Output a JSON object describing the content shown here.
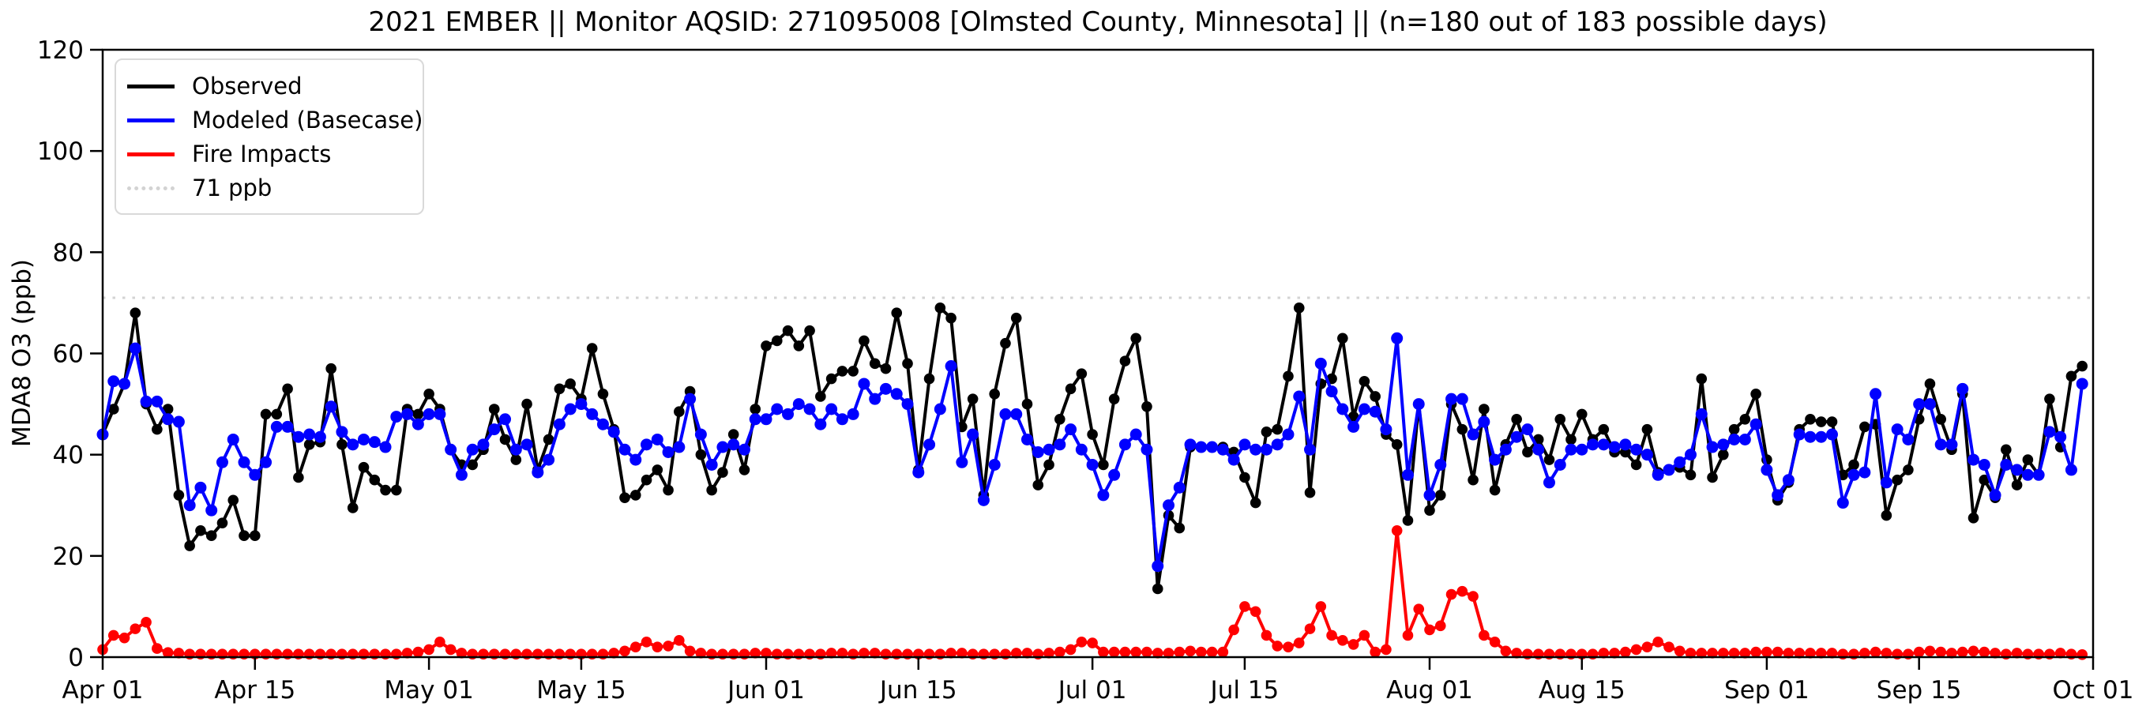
{
  "title": "2021 EMBER || Monitor AQSID: 271095008 [Olmsted County, Minnesota] || (n=180 out of 183 possible days)",
  "legend": {
    "items": [
      {
        "label": "Observed",
        "color": "#000000",
        "style": "solid"
      },
      {
        "label": "Modeled (Basecase)",
        "color": "#0000ff",
        "style": "solid"
      },
      {
        "label": "Fire Impacts",
        "color": "#ff0000",
        "style": "solid"
      },
      {
        "label": "71 ppb",
        "color": "#d3d3d3",
        "style": "dotted"
      }
    ]
  },
  "chart_data": {
    "type": "line",
    "title": "2021 EMBER || Monitor AQSID: 271095008 [Olmsted County, Minnesota] || (n=180 out of 183 possible days)",
    "xlabel": "",
    "ylabel": "MDA8 O3 (ppb)",
    "ylim": [
      0,
      120
    ],
    "yticks": [
      0,
      20,
      40,
      60,
      80,
      100,
      120
    ],
    "x_range_days": 183,
    "x_start": "Apr 01",
    "x_end": "Oct 01",
    "xtick_labels": [
      "Apr 01",
      "Apr 15",
      "May 01",
      "May 15",
      "Jun 01",
      "Jun 15",
      "Jul 01",
      "Jul 15",
      "Aug 01",
      "Aug 15",
      "Sep 01",
      "Sep 15",
      "Oct 01"
    ],
    "xtick_day_index": [
      0,
      14,
      30,
      44,
      61,
      75,
      91,
      105,
      122,
      136,
      153,
      167,
      183
    ],
    "grid": false,
    "legend_position": "upper left",
    "reference_line": {
      "value": 71,
      "label": "71 ppb",
      "color": "#d3d3d3",
      "style": "dotted"
    },
    "series": [
      {
        "name": "Observed",
        "color": "#000000",
        "marker": "circle",
        "values": [
          44,
          49,
          54,
          68,
          50,
          45,
          49,
          32,
          22,
          25,
          24,
          26.5,
          31,
          24,
          24,
          48,
          48,
          53,
          35.5,
          42,
          42.5,
          57,
          42,
          29.5,
          37.5,
          35,
          33,
          33,
          49,
          48,
          52,
          49,
          41,
          38,
          38,
          41,
          49,
          43,
          39,
          50,
          37,
          43,
          53,
          54,
          51,
          61,
          52,
          45,
          31.5,
          32,
          35,
          37,
          33,
          48.5,
          52.5,
          40,
          33,
          36.5,
          44,
          37,
          49,
          61.5,
          62.5,
          64.5,
          61.5,
          64.5,
          51.5,
          55,
          56.5,
          56.5,
          62.5,
          58,
          57,
          68,
          58,
          37,
          55,
          69,
          67,
          45.5,
          51,
          32,
          52,
          62,
          67,
          50,
          34,
          38,
          47,
          53,
          56,
          44,
          38,
          51,
          58.5,
          63,
          49.5,
          13.5,
          28,
          25.5,
          41.5,
          41.5,
          41.5,
          41.5,
          40.5,
          35.5,
          30.5,
          44.5,
          45,
          55.5,
          69,
          32.5,
          54,
          55,
          63,
          47.5,
          54.5,
          51.5,
          44,
          42,
          27,
          50,
          29,
          32,
          50,
          45,
          35,
          49,
          33,
          42,
          47,
          40.5,
          43,
          39,
          47,
          43,
          48,
          43,
          45,
          40.5,
          40.5,
          38,
          45,
          36.5,
          37,
          37.5,
          36,
          55,
          35.5,
          40,
          45,
          47,
          52,
          39,
          31,
          34.5,
          45,
          47,
          46.5,
          46.5,
          36,
          38,
          45.5,
          46,
          28,
          35,
          37,
          47,
          54,
          47,
          41,
          52,
          27.5,
          35,
          31.5,
          41,
          34,
          39,
          36,
          51,
          41.5,
          55.5,
          57.5
        ]
      },
      {
        "name": "Modeled (Basecase)",
        "color": "#0000ff",
        "marker": "circle",
        "values": [
          44,
          54.5,
          54,
          61,
          50.5,
          50.5,
          47,
          46.5,
          30,
          33.5,
          29,
          38.5,
          43,
          38.5,
          36,
          38.5,
          45.5,
          45.5,
          43.5,
          44,
          43.5,
          49.5,
          44.5,
          42,
          43,
          42.5,
          41.5,
          47.5,
          48,
          46,
          48,
          48,
          41,
          36,
          41,
          42,
          45,
          47,
          41,
          42,
          36.5,
          39,
          46,
          49,
          50,
          48,
          46,
          44.5,
          41,
          39,
          42,
          43,
          40.5,
          41.5,
          51,
          44,
          38,
          41.5,
          42,
          41,
          47,
          47,
          49,
          48,
          50,
          49,
          46,
          49,
          47,
          48,
          54,
          51,
          53,
          52,
          50,
          36.5,
          42,
          49,
          57.5,
          38.5,
          44,
          31,
          38,
          48,
          48,
          43,
          40.5,
          41,
          42,
          45,
          41,
          38,
          32,
          36,
          42,
          44,
          41,
          18,
          30,
          33.5,
          42,
          41.5,
          41.5,
          41,
          39,
          42,
          41,
          41,
          42,
          44,
          51.5,
          41,
          58,
          52.5,
          49,
          45.5,
          49,
          48.5,
          45,
          63,
          36,
          50,
          32,
          38,
          51,
          51,
          44,
          46.5,
          39,
          41,
          43.5,
          45,
          41,
          34.5,
          38,
          41,
          41,
          42,
          42,
          41.5,
          42,
          41,
          40,
          36,
          37,
          38.5,
          40,
          48,
          41.5,
          42,
          43,
          43,
          46,
          37,
          32,
          35,
          44,
          43.5,
          43.5,
          44,
          30.5,
          36,
          36.5,
          52,
          34.5,
          45,
          43,
          50,
          50,
          42,
          42,
          53,
          39,
          38,
          32,
          38,
          37,
          36,
          36,
          44.5,
          43.5,
          37,
          54
        ]
      },
      {
        "name": "Fire Impacts",
        "color": "#ff0000",
        "marker": "circle",
        "values": [
          1.5,
          4.3,
          3.8,
          5.6,
          6.9,
          1.7,
          0.9,
          0.8,
          0.6,
          0.6,
          0.6,
          0.6,
          0.6,
          0.6,
          0.6,
          0.6,
          0.6,
          0.6,
          0.6,
          0.6,
          0.6,
          0.6,
          0.6,
          0.6,
          0.6,
          0.6,
          0.6,
          0.6,
          0.8,
          1,
          1.5,
          3,
          1.5,
          0.8,
          0.6,
          0.6,
          0.6,
          0.6,
          0.6,
          0.6,
          0.6,
          0.6,
          0.6,
          0.6,
          0.6,
          0.6,
          0.6,
          0.8,
          1.2,
          2,
          3,
          2,
          2.2,
          3.3,
          1.2,
          0.8,
          0.6,
          0.6,
          0.6,
          0.6,
          0.8,
          0.8,
          0.6,
          0.6,
          0.6,
          0.6,
          0.6,
          0.8,
          0.8,
          0.6,
          0.8,
          0.8,
          0.6,
          0.6,
          0.6,
          0.6,
          0.6,
          0.6,
          0.8,
          0.8,
          0.6,
          0.6,
          0.6,
          0.6,
          0.8,
          0.8,
          0.6,
          0.8,
          1,
          1.5,
          3,
          2.8,
          1,
          1,
          1,
          1,
          1,
          0.8,
          0.8,
          1,
          1.2,
          1,
          1,
          1,
          5.4,
          10,
          9,
          4.3,
          2.2,
          2,
          2.8,
          5.6,
          10,
          4.3,
          3.3,
          2.5,
          4.3,
          1,
          1.5,
          25,
          4.3,
          9.5,
          5.4,
          6.2,
          12.4,
          13,
          12,
          4.3,
          3,
          1.2,
          0.8,
          0.6,
          0.6,
          0.6,
          0.6,
          0.6,
          0.6,
          0.6,
          0.8,
          0.8,
          1,
          1.5,
          2,
          3,
          2,
          1.2,
          0.8,
          0.8,
          0.8,
          0.8,
          0.8,
          0.8,
          1,
          1,
          1,
          0.8,
          0.8,
          0.8,
          0.8,
          0.8,
          0.6,
          0.6,
          0.8,
          1,
          0.8,
          0.6,
          0.6,
          1,
          1.2,
          1,
          0.8,
          1,
          1.2,
          1,
          0.8,
          0.6,
          0.8,
          0.6,
          0.6,
          0.6,
          0.8,
          0.6,
          0.5
        ]
      }
    ]
  }
}
